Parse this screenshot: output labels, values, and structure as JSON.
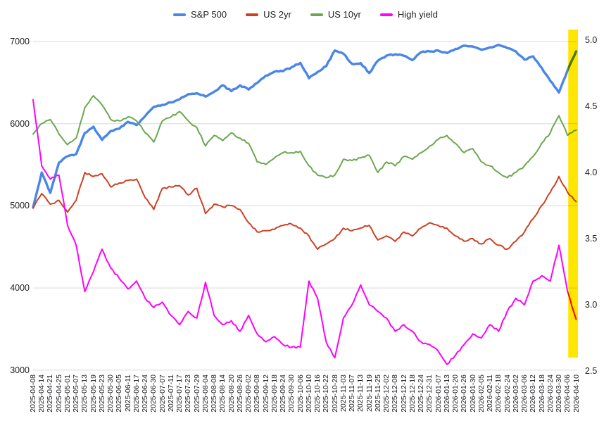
{
  "chart_data": {
    "type": "line",
    "title": "",
    "grid": true,
    "legend_position": "top",
    "background": "#ffffff",
    "gridline_color": "#d9d9d9",
    "text_color": "#202124",
    "x_labels": [
      "2025-04-08",
      "2025-04-14",
      "2025-04-21",
      "2025-04-25",
      "2025-05-01",
      "2025-05-07",
      "2025-05-13",
      "2025-05-19",
      "2025-05-23",
      "2025-05-30",
      "2025-06-05",
      "2025-06-11",
      "2025-06-17",
      "2025-06-24",
      "2025-06-30",
      "2025-07-07",
      "2025-07-11",
      "2025-07-17",
      "2025-07-23",
      "2025-07-29",
      "2025-08-04",
      "2025-08-08",
      "2025-08-14",
      "2025-08-20",
      "2025-08-26",
      "2025-09-02",
      "2025-09-08",
      "2025-09-12",
      "2025-09-18",
      "2025-09-24",
      "2025-09-30",
      "2025-10-06",
      "2025-10-10",
      "2025-10-16",
      "2025-10-22",
      "2025-10-28",
      "2025-11-03",
      "2025-11-07",
      "2025-11-13",
      "2025-11-19",
      "2025-11-25",
      "2025-12-02",
      "2025-12-08",
      "2025-12-12",
      "2025-12-18",
      "2025-12-24",
      "2025-12-31",
      "2026-01-07",
      "2026-01-13",
      "2026-01-20",
      "2026-01-26",
      "2026-01-30",
      "2026-02-05",
      "2026-02-11",
      "2026-02-18",
      "2026-02-24",
      "2026-03-02",
      "2026-03-06",
      "2026-03-12",
      "2026-03-18",
      "2026-03-24",
      "2026-03-30",
      "2026-04-06",
      "2026-04-10"
    ],
    "axes": {
      "left": {
        "min": 3000,
        "max": 7000,
        "ticks": [
          7000,
          6000,
          5000,
          4000,
          3000
        ],
        "tick_labels": [
          "7000",
          "6000",
          "5000",
          "4000",
          "3000"
        ]
      },
      "right": {
        "min": 2.5,
        "max": 5.0,
        "ticks": [
          5.0,
          4.5,
          4.0,
          3.5,
          3.0,
          2.5
        ],
        "tick_labels": [
          "5.0",
          "4.5",
          "4.0",
          "3.5",
          "3.0",
          "2.5"
        ]
      }
    },
    "series": [
      {
        "name": "S&P 500",
        "color": "#4a86e8",
        "axis": "left",
        "values": [
          4983,
          5406,
          5158,
          5525,
          5604,
          5631,
          5886,
          5964,
          5803,
          5912,
          5939,
          6022,
          5983,
          6092,
          6205,
          6230,
          6260,
          6297,
          6359,
          6371,
          6330,
          6389,
          6469,
          6396,
          6466,
          6416,
          6495,
          6584,
          6632,
          6638,
          6688,
          6740,
          6553,
          6629,
          6699,
          6891,
          6852,
          6728,
          6737,
          6617,
          6766,
          6829,
          6846,
          6828,
          6774,
          6870,
          6880,
          6890,
          6860,
          6910,
          6950,
          6940,
          6900,
          6930,
          6960,
          6920,
          6880,
          6780,
          6820,
          6680,
          6520,
          6380,
          6650,
          6880
        ]
      },
      {
        "name": "US 2yr",
        "color": "#cc4125",
        "axis": "right",
        "values": [
          3.73,
          3.84,
          3.76,
          3.79,
          3.7,
          3.79,
          4.0,
          3.97,
          3.99,
          3.89,
          3.92,
          3.94,
          3.95,
          3.81,
          3.72,
          3.88,
          3.89,
          3.9,
          3.83,
          3.88,
          3.69,
          3.76,
          3.74,
          3.75,
          3.72,
          3.62,
          3.55,
          3.56,
          3.57,
          3.6,
          3.61,
          3.58,
          3.52,
          3.42,
          3.46,
          3.5,
          3.58,
          3.56,
          3.58,
          3.6,
          3.49,
          3.52,
          3.48,
          3.55,
          3.52,
          3.58,
          3.62,
          3.6,
          3.58,
          3.52,
          3.48,
          3.5,
          3.46,
          3.5,
          3.45,
          3.42,
          3.48,
          3.55,
          3.65,
          3.75,
          3.85,
          3.97,
          3.85,
          3.78
        ]
      },
      {
        "name": "US 10yr",
        "color": "#6aa84f",
        "axis": "right",
        "values": [
          4.29,
          4.37,
          4.4,
          4.29,
          4.21,
          4.26,
          4.49,
          4.58,
          4.51,
          4.4,
          4.39,
          4.42,
          4.39,
          4.3,
          4.23,
          4.39,
          4.42,
          4.46,
          4.39,
          4.34,
          4.2,
          4.28,
          4.24,
          4.3,
          4.26,
          4.22,
          4.08,
          4.06,
          4.11,
          4.15,
          4.15,
          4.16,
          4.05,
          3.98,
          3.96,
          3.98,
          4.1,
          4.09,
          4.11,
          4.13,
          4.0,
          4.08,
          4.05,
          4.12,
          4.1,
          4.15,
          4.2,
          4.25,
          4.28,
          4.22,
          4.15,
          4.18,
          4.08,
          4.05,
          4.0,
          3.96,
          4.0,
          4.05,
          4.12,
          4.22,
          4.3,
          4.43,
          4.28,
          4.32
        ]
      },
      {
        "name": "High yield",
        "color": "#ff00ff",
        "axis": "right",
        "values": [
          4.55,
          4.05,
          3.95,
          3.98,
          3.6,
          3.45,
          3.1,
          3.25,
          3.42,
          3.28,
          3.2,
          3.12,
          3.18,
          3.05,
          2.98,
          3.02,
          2.92,
          2.85,
          2.95,
          2.9,
          3.17,
          2.92,
          2.85,
          2.88,
          2.8,
          2.92,
          2.78,
          2.72,
          2.76,
          2.7,
          2.68,
          2.68,
          3.18,
          3.05,
          2.72,
          2.6,
          2.9,
          3.0,
          3.15,
          3.0,
          2.95,
          2.9,
          2.8,
          2.85,
          2.8,
          2.72,
          2.7,
          2.65,
          2.55,
          2.62,
          2.7,
          2.78,
          2.75,
          2.85,
          2.8,
          2.95,
          3.05,
          3.0,
          3.18,
          3.22,
          3.18,
          3.45,
          3.1,
          2.89
        ]
      }
    ],
    "highlight_band": {
      "from": "2026-04-06",
      "to": "2026-04-10",
      "color": "#ffe600"
    }
  }
}
